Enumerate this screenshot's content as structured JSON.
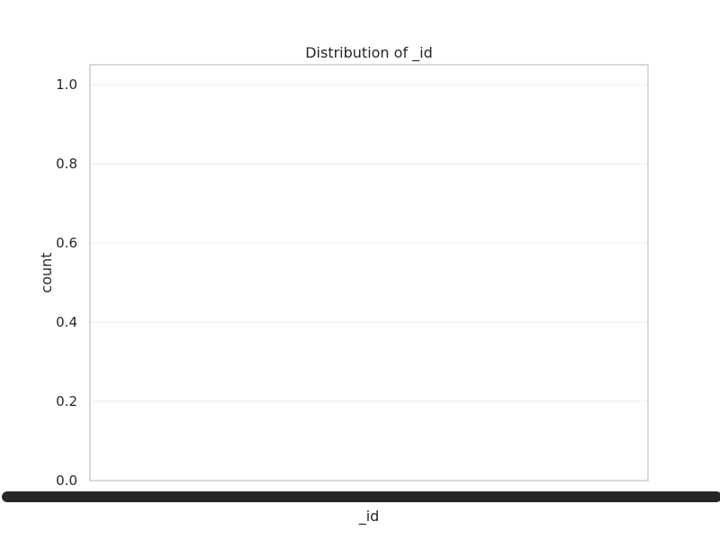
{
  "chart_data": {
    "type": "bar",
    "title": "Distribution of _id",
    "xlabel": "_id",
    "ylabel": "count",
    "ylim": [
      0,
      1.05
    ],
    "yticks": [
      0.0,
      0.2,
      0.4,
      0.6,
      0.8,
      1.0
    ],
    "ytick_labels": [
      "0.0",
      "0.2",
      "0.4",
      "0.6",
      "0.8",
      "1.0"
    ],
    "categories": [],
    "values": [],
    "grid": true,
    "x_tick_labels_overlapping": true
  },
  "colors": {
    "frame": "#cccccc",
    "grid": "#ebebeb",
    "text": "#262626",
    "xtick_overlap": "#262626"
  }
}
